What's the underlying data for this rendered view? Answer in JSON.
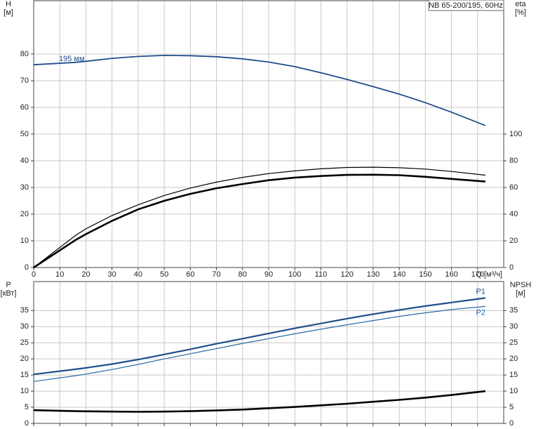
{
  "chart_data": [
    {
      "type": "line",
      "title": "NB 65-200/195, 60Hz",
      "ylabel": [
        "H",
        "[м]"
      ],
      "y2label": [
        "eta",
        "[%]"
      ],
      "xlabel": "Q [м³/ч]",
      "x": [
        0,
        16,
        20,
        30,
        40,
        50,
        60,
        70,
        80,
        90,
        100,
        110,
        120,
        130,
        140,
        150,
        160,
        173
      ],
      "xlim": [
        0,
        180
      ],
      "xticks": [
        0,
        10,
        20,
        30,
        40,
        50,
        60,
        70,
        80,
        90,
        100,
        110,
        120,
        130,
        140,
        150,
        160,
        170
      ],
      "ylim": [
        0,
        100
      ],
      "yticks": [
        0,
        10,
        20,
        30,
        40,
        50,
        60,
        70,
        80
      ],
      "y2lim": [
        0,
        200
      ],
      "y2ticks": [
        0,
        20,
        40,
        60,
        80,
        100
      ],
      "grid": true,
      "series": [
        {
          "name": "195 мм",
          "color": "#1f4e8c",
          "values": [
            76,
            76.9,
            77.3,
            78.4,
            79.1,
            79.5,
            79.4,
            79,
            78.2,
            77,
            75.3,
            73,
            70.5,
            67.8,
            65,
            61.8,
            58.2,
            53.2
          ]
        },
        {
          "color": "#000000",
          "axis": "y2",
          "values": [
            0,
            24,
            29,
            39,
            47,
            54,
            59.6,
            64,
            67.6,
            70.4,
            72.4,
            74,
            75,
            75.2,
            74.8,
            73.8,
            72,
            69.2
          ]
        },
        {
          "color": "#000000",
          "axis": "y2",
          "values": [
            0,
            20.6,
            25,
            35,
            43.6,
            50,
            55.2,
            59.4,
            62.6,
            65.4,
            67.4,
            68.6,
            69.4,
            69.6,
            69.2,
            68,
            66.4,
            64.4
          ]
        }
      ]
    },
    {
      "type": "line",
      "ylabel": [
        "P",
        "[кВт]"
      ],
      "y2label": [
        "NPSH",
        "[м]"
      ],
      "x": [
        0,
        16,
        20,
        30,
        40,
        50,
        60,
        70,
        80,
        90,
        100,
        110,
        120,
        130,
        140,
        150,
        160,
        173
      ],
      "xlim": [
        0,
        180
      ],
      "ylim": [
        0,
        44
      ],
      "yticks": [
        0,
        5,
        10,
        15,
        20,
        25,
        30,
        35
      ],
      "y2lim": [
        0,
        44
      ],
      "y2ticks": [
        0,
        5,
        10,
        15,
        20,
        25,
        30,
        35
      ],
      "grid": true,
      "series": [
        {
          "name": "P1",
          "color": "#1f4e8c",
          "values": [
            15.2,
            16.8,
            17.2,
            18.4,
            19.8,
            21.4,
            23,
            24.7,
            26.3,
            27.9,
            29.5,
            31,
            32.5,
            33.9,
            35.2,
            36.4,
            37.5,
            38.9
          ]
        },
        {
          "name": "P2",
          "color": "#2a6aa8",
          "values": [
            13,
            14.8,
            15.3,
            16.7,
            18.3,
            20,
            21.6,
            23.2,
            24.8,
            26.3,
            27.8,
            29.2,
            30.6,
            31.9,
            33.2,
            34.3,
            35.3,
            36.3
          ]
        },
        {
          "color": "#000000",
          "axis": "y2",
          "values": [
            4.1,
            3.8,
            3.75,
            3.65,
            3.6,
            3.65,
            3.8,
            4,
            4.3,
            4.7,
            5.1,
            5.6,
            6.1,
            6.7,
            7.3,
            8,
            8.8,
            10
          ]
        }
      ]
    }
  ]
}
